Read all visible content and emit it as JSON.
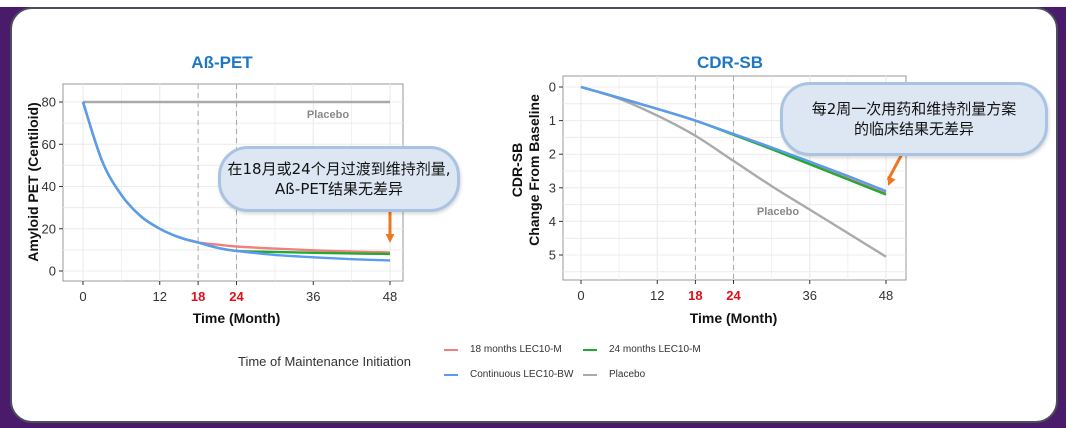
{
  "callouts": {
    "left": [
      "在18月或24个月过渡到维持剂量,",
      "Aß-PET结果无差异"
    ],
    "right": [
      "每2周一次用药和维持剂量方案",
      "的临床结果无差异"
    ]
  },
  "legend": {
    "title": "Time of Maintenance Initiation",
    "items": [
      {
        "label": "18 months LEC10-M",
        "color": "#f08080"
      },
      {
        "label": "24 months LEC10-M",
        "color": "#22aa33"
      },
      {
        "label": "Continuous LEC10-BW",
        "color": "#5b9cf0"
      },
      {
        "label": "Placebo",
        "color": "#aaaaaa"
      }
    ]
  },
  "chart_data": [
    {
      "type": "line",
      "title": "Aß-PET",
      "xlabel": "Time (Month)",
      "ylabel": "Amyloid PET (Centiloid)",
      "xticks": [
        "0",
        "12",
        "18",
        "24",
        "36",
        "48"
      ],
      "highlighted_xticks": [
        "18",
        "24"
      ],
      "yticks": [
        "0",
        "20",
        "40",
        "60",
        "80"
      ],
      "xlim": [
        -5,
        50
      ],
      "ylim": [
        -5,
        84
      ],
      "reference_lines_x": [
        18,
        24
      ],
      "grid": true,
      "annotation": "Placebo",
      "x": [
        0,
        3,
        6,
        9,
        12,
        15,
        18,
        21,
        24,
        30,
        36,
        42,
        48
      ],
      "series": [
        {
          "name": "Placebo",
          "color": "#aaaaaa",
          "values": [
            80,
            80,
            80,
            80,
            80,
            80,
            80,
            80,
            80,
            80,
            80,
            80,
            80
          ]
        },
        {
          "name": "18 months LEC10-M",
          "color": "#f08080",
          "values": [
            80,
            52,
            36,
            26,
            20,
            16,
            13.5,
            12.5,
            11.6,
            10.6,
            9.8,
            9.2,
            8.8
          ]
        },
        {
          "name": "24 months LEC10-M",
          "color": "#22aa33",
          "values": [
            80,
            52,
            36,
            26,
            20,
            16,
            13.5,
            11,
            9.5,
            9,
            8.6,
            8.3,
            8.1
          ]
        },
        {
          "name": "Continuous LEC10-BW",
          "color": "#5b9cf0",
          "values": [
            80,
            52,
            36,
            26,
            20,
            16,
            13.5,
            11,
            9.5,
            7.6,
            6.5,
            5.6,
            5
          ]
        }
      ]
    },
    {
      "type": "line",
      "title": "CDR-SB",
      "xlabel": "Time (Month)",
      "ylabel": "CDR-SB Change From Baseline",
      "xticks": [
        "0",
        "12",
        "18",
        "24",
        "36",
        "48"
      ],
      "highlighted_xticks": [
        "18",
        "24"
      ],
      "yticks": [
        "0",
        "1",
        "2",
        "3",
        "4",
        "5"
      ],
      "xlim": [
        -5,
        50
      ],
      "ylim": [
        -0.25,
        5.7
      ],
      "y_reversed": true,
      "reference_lines_x": [
        18,
        24
      ],
      "grid": true,
      "annotation": "Placebo",
      "x": [
        0,
        6,
        12,
        18,
        24,
        30,
        36,
        42,
        48
      ],
      "series": [
        {
          "name": "Placebo",
          "color": "#aaaaaa",
          "values": [
            0,
            0.35,
            0.85,
            1.45,
            2.2,
            2.95,
            3.65,
            4.35,
            5.05
          ]
        },
        {
          "name": "18 months LEC10-M",
          "color": "#f08080",
          "values": [
            0,
            0.32,
            0.65,
            1.0,
            1.4,
            1.8,
            2.25,
            2.7,
            3.15
          ]
        },
        {
          "name": "24 months LEC10-M",
          "color": "#22aa33",
          "values": [
            0,
            0.32,
            0.65,
            1.0,
            1.42,
            1.85,
            2.3,
            2.75,
            3.2
          ]
        },
        {
          "name": "Continuous LEC10-BW",
          "color": "#5b9cf0",
          "values": [
            0,
            0.32,
            0.65,
            1.0,
            1.4,
            1.8,
            2.22,
            2.65,
            3.1
          ]
        }
      ]
    }
  ]
}
